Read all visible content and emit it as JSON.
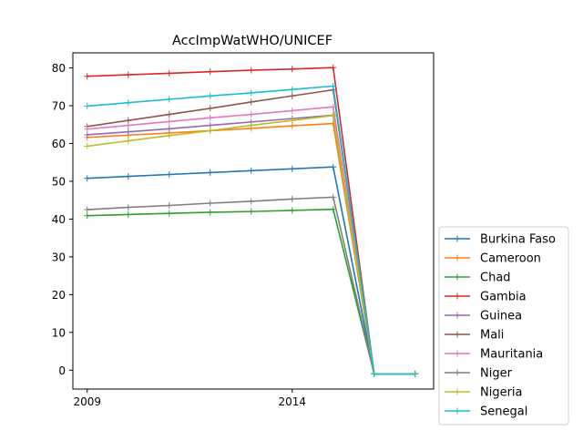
{
  "chart_data": {
    "type": "line",
    "title": "AccImpWatWHO/UNICEF",
    "xlabel": "",
    "ylabel": "",
    "xlim": [
      2008.65,
      2017.45
    ],
    "ylim": [
      -5,
      84
    ],
    "x_ticks": [
      2009,
      2014
    ],
    "x_tick_labels": [
      "2009",
      "2014"
    ],
    "y_ticks": [
      0,
      10,
      20,
      30,
      40,
      50,
      60,
      70,
      80
    ],
    "y_tick_labels": [
      "0",
      "10",
      "20",
      "30",
      "40",
      "50",
      "60",
      "70",
      "80"
    ],
    "x": [
      2009,
      2010,
      2011,
      2012,
      2013,
      2014,
      2015,
      2016,
      2017
    ],
    "grid": false,
    "legend_position": "lower-right, outside plot",
    "marker": "+",
    "series": [
      {
        "name": "Burkina Faso",
        "color": "#1f77b4",
        "values": [
          50.8,
          51.3,
          51.8,
          52.3,
          52.8,
          53.3,
          53.8,
          -1,
          -1
        ]
      },
      {
        "name": "Cameroon",
        "color": "#ff7f0e",
        "values": [
          61.6,
          62.2,
          62.8,
          63.4,
          64.0,
          64.7,
          65.3,
          -1,
          -1
        ]
      },
      {
        "name": "Chad",
        "color": "#2ca02c",
        "values": [
          40.9,
          41.2,
          41.5,
          41.8,
          42.0,
          42.3,
          42.6,
          -1,
          -1
        ]
      },
      {
        "name": "Gambia",
        "color": "#d62728",
        "values": [
          77.8,
          78.2,
          78.6,
          79.0,
          79.4,
          79.7,
          80.1,
          -1,
          -1
        ]
      },
      {
        "name": "Guinea",
        "color": "#9467bd",
        "values": [
          62.3,
          63.1,
          63.9,
          64.8,
          65.7,
          66.6,
          67.5,
          -1,
          -1
        ]
      },
      {
        "name": "Mali",
        "color": "#8c564b",
        "values": [
          64.5,
          66.1,
          67.7,
          69.3,
          71.0,
          72.6,
          74.2,
          -1,
          -1
        ]
      },
      {
        "name": "Mauritania",
        "color": "#e377c2",
        "values": [
          63.8,
          64.8,
          65.8,
          66.8,
          67.7,
          68.7,
          69.7,
          -1,
          -1
        ]
      },
      {
        "name": "Niger",
        "color": "#7f7f7f",
        "values": [
          42.5,
          43.1,
          43.6,
          44.2,
          44.7,
          45.3,
          45.8,
          -1,
          -1
        ]
      },
      {
        "name": "Nigeria",
        "color": "#bcbd22",
        "values": [
          59.3,
          60.7,
          62.1,
          63.4,
          64.8,
          66.1,
          67.4,
          -1,
          -1
        ]
      },
      {
        "name": "Senegal",
        "color": "#17becf",
        "values": [
          69.9,
          70.8,
          71.7,
          72.6,
          73.4,
          74.3,
          75.2,
          -1,
          -1
        ]
      }
    ]
  }
}
